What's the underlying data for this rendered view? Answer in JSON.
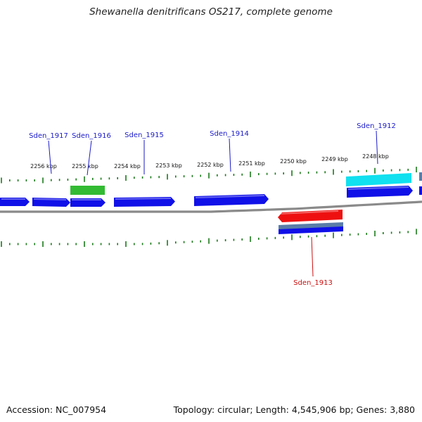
{
  "title": "Shewanella denitrificans OS217, complete genome",
  "footer": {
    "accession": "Accession: NC_007954",
    "genome_info": "Topology: circular; Length: 4,545,906 bp; Genes: 3,880"
  },
  "colors": {
    "backbone": "#8a8a8a",
    "ticks": "#1a7a1a",
    "gene_forward": "#1010e8",
    "gene_highlight_green": "#33bb33",
    "gene_highlight_cyan": "#10e0ef",
    "gene_highlight_red": "#ee1010",
    "gene_steel": "#5a7da8",
    "label_blue": "#1a1ac8",
    "label_red": "#cc1010"
  },
  "kbp_labels": [
    "2256 kbp",
    "2255 kbp",
    "2254 kbp",
    "2253 kbp",
    "2252 kbp",
    "2251 kbp",
    "2250 kbp",
    "2249 kbp",
    "2248 kbp"
  ],
  "gene_labels": [
    {
      "name": "Sden_1917",
      "strand": "+"
    },
    {
      "name": "Sden_1916",
      "strand": "+"
    },
    {
      "name": "Sden_1915",
      "strand": "+"
    },
    {
      "name": "Sden_1914",
      "strand": "+"
    },
    {
      "name": "Sden_1912",
      "strand": "+"
    },
    {
      "name": "Sden_1913",
      "strand": "-"
    }
  ]
}
